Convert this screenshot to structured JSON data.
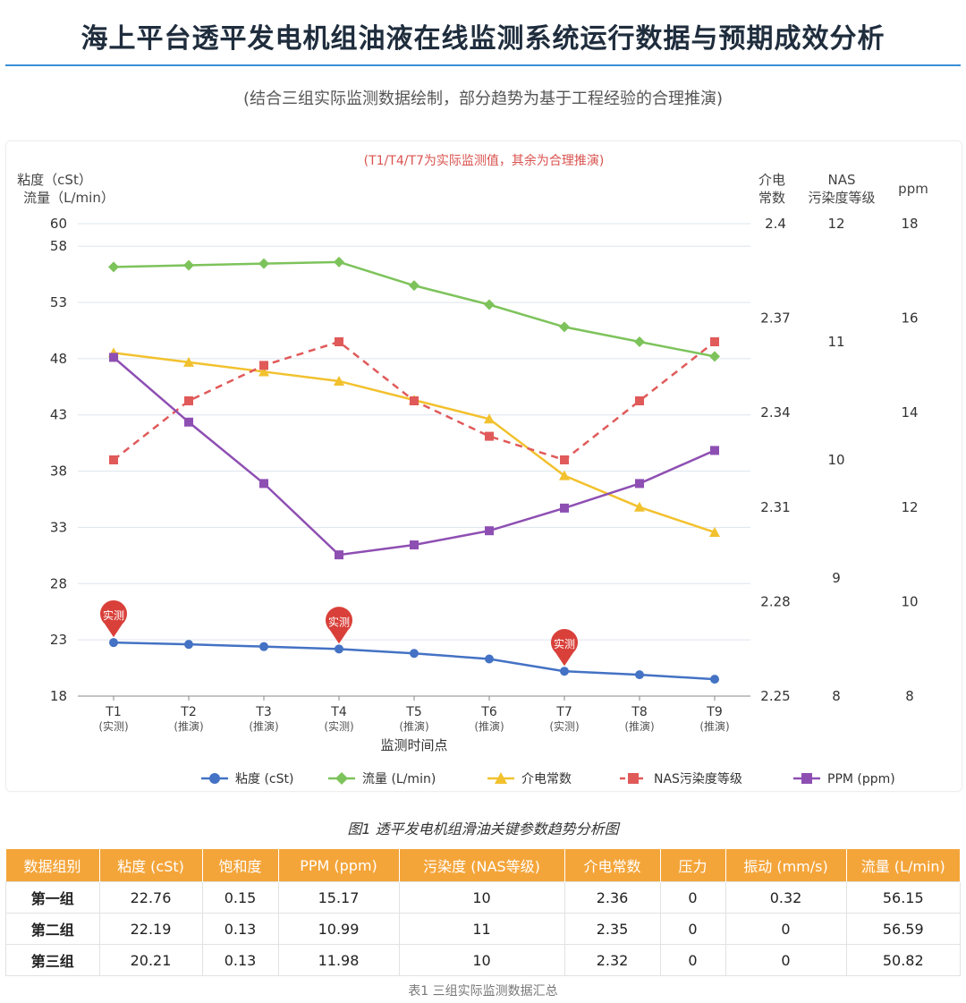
{
  "page": {
    "title": "海上平台透平发电机组油液在线监测系统运行数据与预期成效分析",
    "subtitle": "(结合三组实际监测数据绘制，部分趋势为基于工程经验的合理推演)",
    "figure_caption": "图1 透平发电机组滑油关键参数趋势分析图",
    "table_caption": "表1 三组实际监测数据汇总"
  },
  "chart_data": {
    "type": "line",
    "title": "",
    "note": "(T1/T4/T7为实际监测值，其余为合理推演)",
    "categories": [
      "T1",
      "T2",
      "T3",
      "T4",
      "T5",
      "T6",
      "T7",
      "T8",
      "T9"
    ],
    "category_sublabels": [
      "(实测)",
      "(推演)",
      "(推演)",
      "(实测)",
      "(推演)",
      "(推演)",
      "(实测)",
      "(推演)",
      "(推演)"
    ],
    "xlabel": "监测时间点",
    "marker_label": "实测",
    "marked_points": [
      "T1",
      "T4",
      "T7"
    ],
    "axes": {
      "left": {
        "label_lines": [
          "粘度（cSt）",
          "流量（L/min）"
        ],
        "ticks": [
          18,
          23,
          28,
          33,
          38,
          43,
          48,
          53,
          58,
          60
        ],
        "range": [
          18,
          60
        ]
      },
      "dielectric": {
        "label_lines": [
          "介电",
          "常数"
        ],
        "ticks": [
          "2.25",
          "2.28",
          "2.31",
          "2.34",
          "2.37",
          "2.4"
        ],
        "range": [
          2.25,
          2.4
        ]
      },
      "nas": {
        "label_lines": [
          "NAS",
          "污染度等级"
        ],
        "ticks": [
          8,
          9,
          10,
          11,
          12
        ]
      },
      "ppm": {
        "label_lines": [
          "ppm"
        ],
        "ticks": [
          8,
          10,
          12,
          14,
          16,
          18
        ],
        "range": [
          8,
          18
        ]
      }
    },
    "grid": true,
    "legend_position": "bottom",
    "series": [
      {
        "name": "粘度 (cSt)",
        "axis": "left",
        "color": "#4472c4",
        "marker": "circle",
        "dashed": false,
        "values": [
          22.76,
          22.6,
          22.4,
          22.19,
          21.8,
          21.3,
          20.21,
          19.9,
          19.5
        ]
      },
      {
        "name": "流量 (L/min)",
        "axis": "left",
        "color": "#7dc35b",
        "marker": "diamond",
        "dashed": false,
        "values": [
          56.15,
          56.3,
          56.45,
          56.59,
          54.5,
          52.8,
          50.82,
          49.5,
          48.2
        ]
      },
      {
        "name": "介电常数",
        "axis": "dielectric",
        "color": "#f2c12e",
        "marker": "triangle",
        "dashed": false,
        "values": [
          2.359,
          2.356,
          2.353,
          2.35,
          2.344,
          2.338,
          2.32,
          2.31,
          2.302
        ]
      },
      {
        "name": "NAS污染度等级",
        "axis": "nas",
        "color": "#e05a5a",
        "marker": "square",
        "dashed": true,
        "values": [
          10,
          10.5,
          10.8,
          11,
          10.5,
          10.2,
          10,
          10.5,
          11
        ]
      },
      {
        "name": "PPM (ppm)",
        "axis": "ppm",
        "color": "#8e4fb3",
        "marker": "square",
        "dashed": false,
        "values": [
          15.17,
          13.8,
          12.5,
          10.99,
          11.2,
          11.5,
          11.98,
          12.5,
          13.2
        ]
      }
    ]
  },
  "table": {
    "headers": [
      "数据组别",
      "粘度 (cSt)",
      "饱和度",
      "PPM (ppm)",
      "污染度 (NAS等级)",
      "介电常数",
      "压力",
      "振动 (mm/s)",
      "流量 (L/min)"
    ],
    "rows": [
      [
        "第一组",
        "22.76",
        "0.15",
        "15.17",
        "10",
        "2.36",
        "0",
        "0.32",
        "56.15"
      ],
      [
        "第二组",
        "22.19",
        "0.13",
        "10.99",
        "11",
        "2.35",
        "0",
        "0",
        "56.59"
      ],
      [
        "第三组",
        "20.21",
        "0.13",
        "11.98",
        "10",
        "2.32",
        "0",
        "0",
        "50.82"
      ]
    ]
  }
}
